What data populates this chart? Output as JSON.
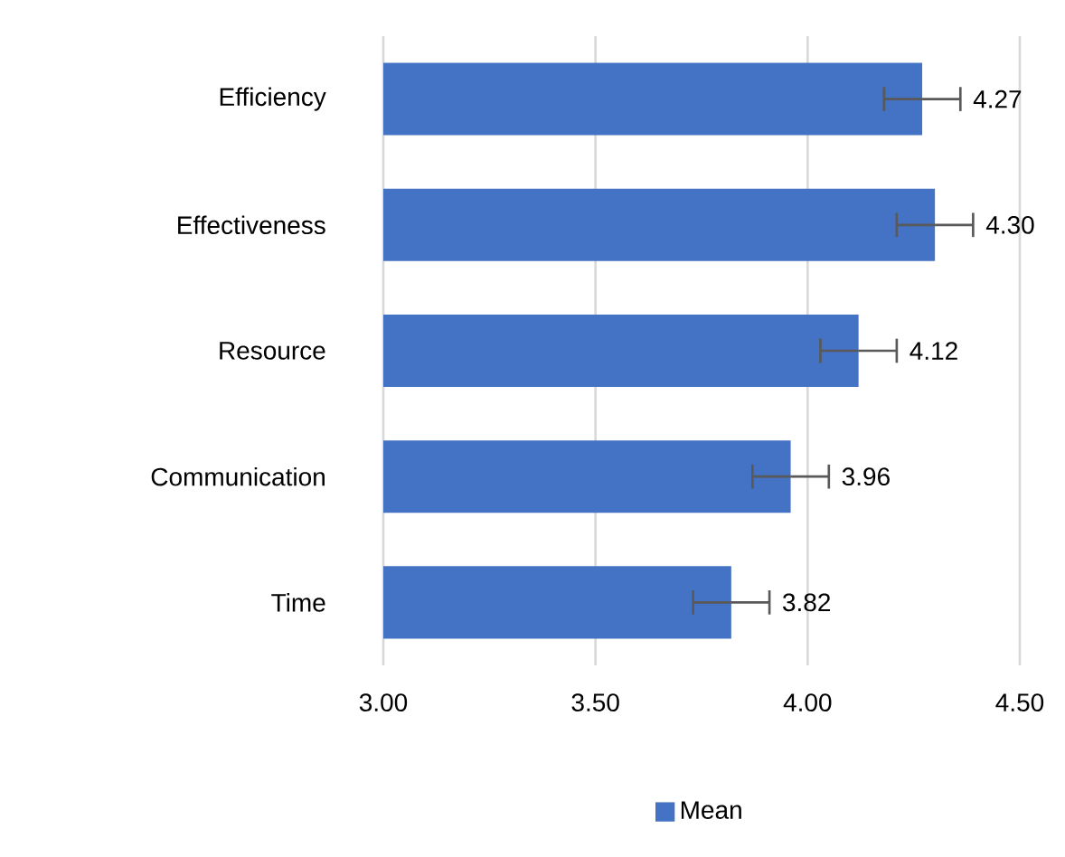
{
  "chart_data": {
    "type": "bar",
    "orientation": "horizontal",
    "categories": [
      "Efficiency",
      "Effectiveness",
      "Resource",
      "Communication",
      "Time"
    ],
    "series": [
      {
        "name": "Mean",
        "color": "#4472c4",
        "values": [
          4.27,
          4.3,
          4.12,
          3.96,
          3.82
        ],
        "errors": [
          0.09,
          0.09,
          0.09,
          0.09,
          0.09
        ],
        "value_labels": [
          "4.27",
          "4.30",
          "4.12",
          "3.96",
          "3.82"
        ]
      }
    ],
    "xlim": [
      3.0,
      4.5
    ],
    "xticks": [
      {
        "value": 3.0,
        "label": "3.00"
      },
      {
        "value": 3.5,
        "label": "3.50"
      },
      {
        "value": 4.0,
        "label": "4.00"
      },
      {
        "value": 4.5,
        "label": "4.50"
      }
    ],
    "grid": "x",
    "legend": "bottom"
  }
}
